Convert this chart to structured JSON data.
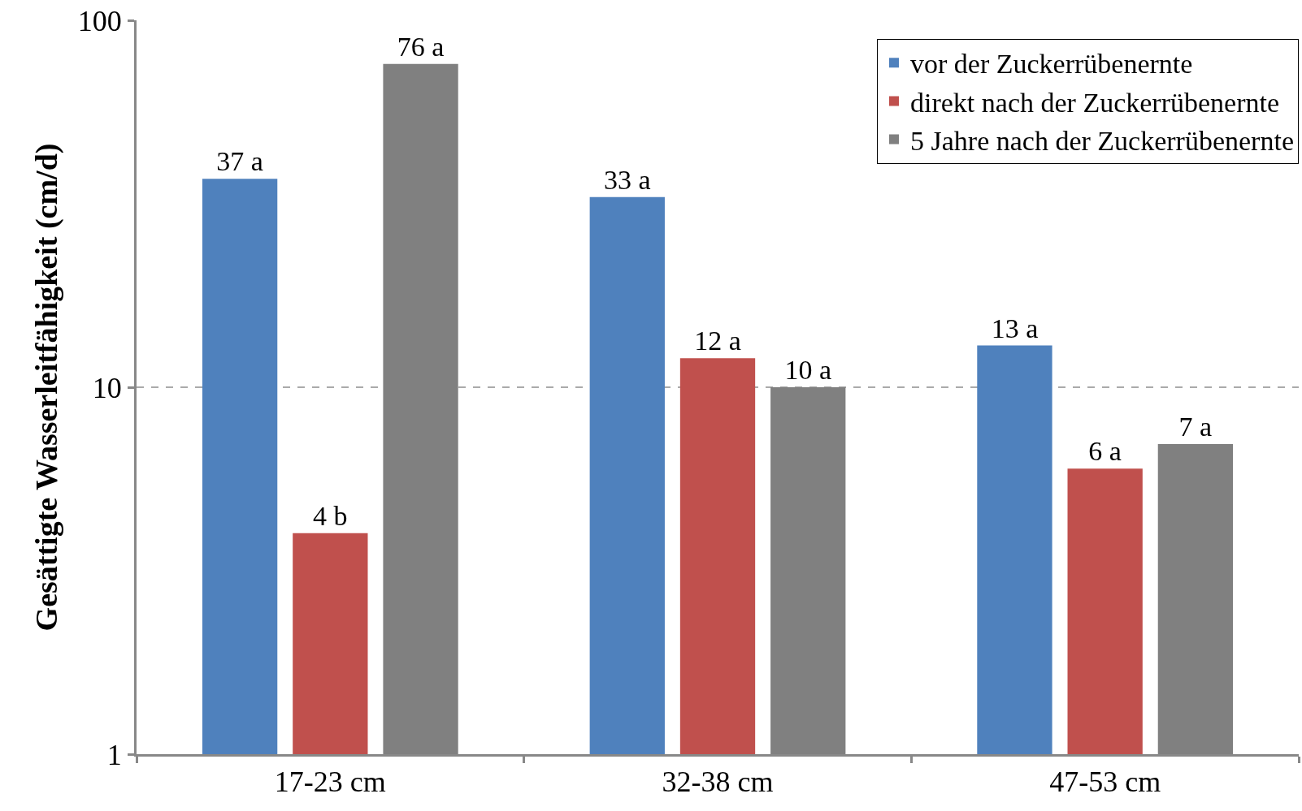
{
  "chart_data": {
    "type": "bar",
    "ylabel": "Gesättigte Wasserleitfähigkeit (cm/d)",
    "categories": [
      "17-23 cm",
      "32-38 cm",
      "47-53 cm"
    ],
    "series": [
      {
        "name": "vor der Zuckerrübenernte",
        "color": "#4f81bd",
        "values": [
          37,
          33,
          13
        ],
        "value_labels": [
          "37 a",
          "33 a",
          "13 a"
        ]
      },
      {
        "name": "direkt nach der Zuckerrübenernte",
        "color": "#c0504d",
        "values": [
          4,
          12,
          6
        ],
        "value_labels": [
          "4 b",
          "12 a",
          "6 a"
        ]
      },
      {
        "name": "5 Jahre nach der Zuckerrübenernte",
        "color": "#808080",
        "values": [
          76,
          10,
          7
        ],
        "value_labels": [
          "76 a",
          "10 a",
          "7 a"
        ]
      }
    ],
    "log": "y",
    "ylim": [
      1,
      100
    ],
    "yticks": [
      1,
      10,
      100
    ],
    "grid": "y",
    "legend": "top right"
  }
}
